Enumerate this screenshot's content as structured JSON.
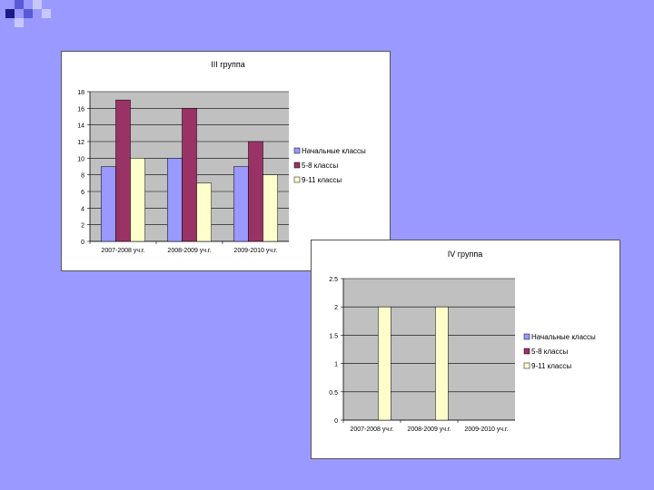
{
  "colors": {
    "background": "#9999ff",
    "plot_area": "#c0c0c0",
    "series": [
      "#9999ff",
      "#993366",
      "#ffffcc"
    ],
    "deco_dark": "#1a1a8c",
    "deco_mid": "#5a5ad8",
    "deco_light": "#c8c8ff"
  },
  "chart_data": [
    {
      "type": "bar",
      "title": "III группа",
      "categories": [
        "2007-2008 уч.г.",
        "2008-2009 уч.г.",
        "2009-2010 уч.г."
      ],
      "series": [
        {
          "name": "Начальные классы",
          "values": [
            9,
            10,
            9
          ]
        },
        {
          "name": "5-8 классы",
          "values": [
            17,
            16,
            12
          ]
        },
        {
          "name": "9-11 классы",
          "values": [
            10,
            7,
            8
          ]
        }
      ],
      "ylim": [
        0,
        18
      ],
      "yticks": [
        "0",
        "2",
        "4",
        "6",
        "8",
        "10",
        "12",
        "14",
        "16",
        "18"
      ],
      "grid": true,
      "legend": "right"
    },
    {
      "type": "bar",
      "title": "IV группа",
      "categories": [
        "2007-2008 уч.г.",
        "2008-2009 уч.г.",
        "2009-2010 уч.г."
      ],
      "series": [
        {
          "name": "Начальные классы",
          "values": [
            0,
            0,
            0
          ]
        },
        {
          "name": "5-8 классы",
          "values": [
            0,
            0,
            0
          ]
        },
        {
          "name": "9-11 классы",
          "values": [
            2,
            2,
            0
          ]
        }
      ],
      "ylim": [
        0,
        2.5
      ],
      "yticks": [
        "0",
        "0.5",
        "1",
        "1.5",
        "2",
        "2.5"
      ],
      "grid": true,
      "legend": "right"
    }
  ]
}
